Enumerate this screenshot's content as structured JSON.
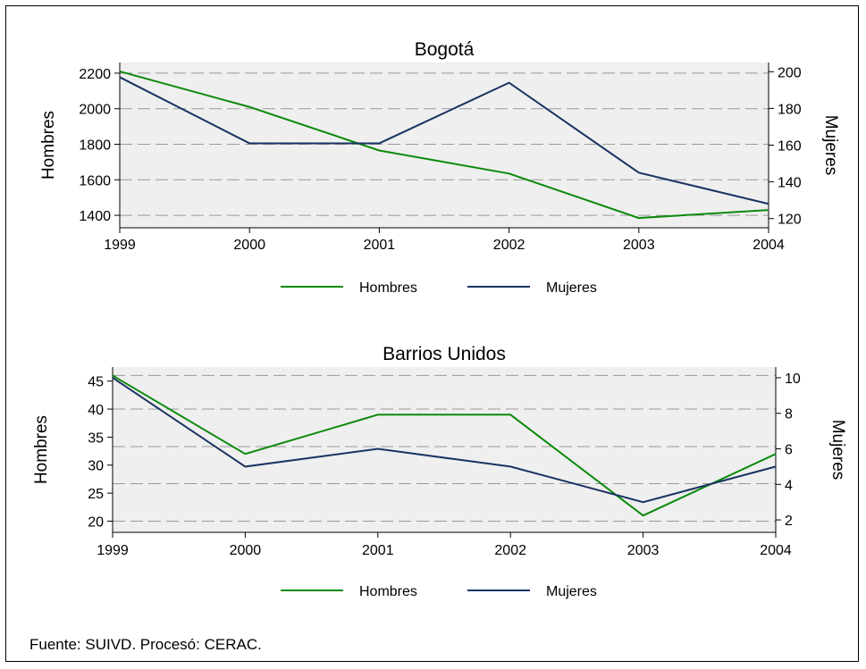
{
  "chart_data": [
    {
      "type": "line",
      "title": "Bogotá",
      "x": [
        1999,
        2000,
        2001,
        2002,
        2003,
        2004
      ],
      "ylabel_left": "Hombres",
      "ylabel_right": "Mujeres",
      "ylim_left": [
        1330,
        2260
      ],
      "yticks_left": [
        1400,
        1600,
        1800,
        2000,
        2200
      ],
      "ylim_right": [
        115,
        205
      ],
      "yticks_right": [
        120,
        140,
        160,
        180,
        200
      ],
      "grid_lines_left": [
        1400,
        1600,
        1800,
        2000,
        2200
      ],
      "legend_position": "bottom",
      "series": [
        {
          "name": "Hombres",
          "axis": "left",
          "color": "#0b8a0b",
          "values": [
            2210,
            2010,
            1765,
            1635,
            1385,
            1430
          ]
        },
        {
          "name": "Mujeres",
          "axis": "right",
          "color": "#1a3361",
          "values": [
            197,
            161,
            161,
            194,
            145,
            128
          ]
        }
      ]
    },
    {
      "type": "line",
      "title": "Barrios Unidos",
      "x": [
        1999,
        2000,
        2001,
        2002,
        2003,
        2004
      ],
      "ylabel_left": "Hombres",
      "ylabel_right": "Mujeres",
      "ylim_left": [
        18,
        47.5
      ],
      "yticks_left": [
        20,
        25,
        30,
        35,
        40,
        45
      ],
      "ylim_right": [
        1.3,
        10.6
      ],
      "yticks_right": [
        2,
        4,
        6,
        8,
        10
      ],
      "grid_lines_left": [
        20,
        26.7,
        33.3,
        40,
        46
      ],
      "legend_position": "bottom",
      "series": [
        {
          "name": "Hombres",
          "axis": "left",
          "color": "#0b8a0b",
          "values": [
            46,
            32,
            39,
            39,
            21,
            32
          ]
        },
        {
          "name": "Mujeres",
          "axis": "right",
          "color": "#1a3361",
          "values": [
            10,
            5,
            6,
            5,
            3,
            5
          ]
        }
      ]
    }
  ],
  "footer": "Fuente: SUIVD. Procesó: CERAC."
}
